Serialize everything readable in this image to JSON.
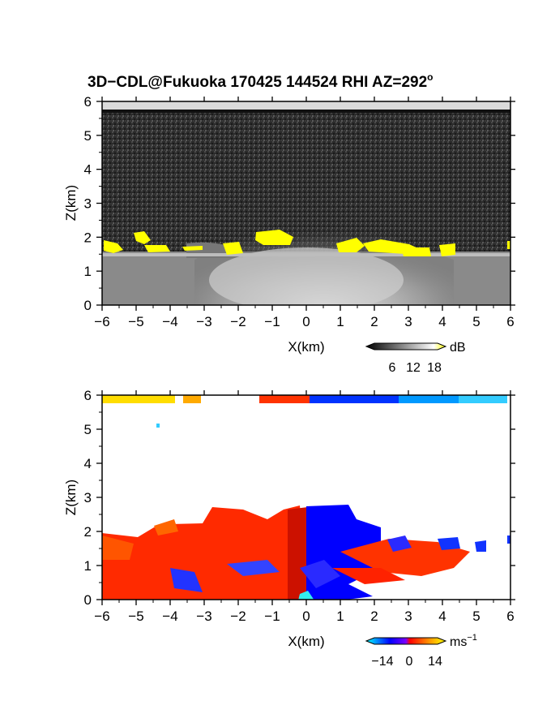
{
  "chart_data": [
    {
      "type": "heatmap",
      "title": "3D−CDL@Fukuoka 170425 144524 RHI AZ=292",
      "title_suffix": "o",
      "xlabel": "X(km)",
      "ylabel": "Z(km)",
      "xlim": [
        -6,
        6
      ],
      "ylim": [
        0,
        6
      ],
      "x_ticks": [
        -6,
        -5,
        -4,
        -3,
        -2,
        -1,
        0,
        1,
        2,
        3,
        4,
        5,
        6
      ],
      "y_ticks": [
        0,
        1,
        2,
        3,
        4,
        5,
        6
      ],
      "colorbar": {
        "unit": "dB",
        "ticks": [
          6,
          12,
          18
        ],
        "range": [
          0,
          20
        ],
        "colors": [
          "#000000",
          "#ffffff",
          "#ffff00"
        ]
      },
      "grid": false,
      "features": [
        {
          "name": "bright near-surface echo",
          "x": [
            -6,
            6
          ],
          "z": [
            0,
            1.6
          ],
          "db": 14
        },
        {
          "name": "high-SNR cloud-base band",
          "x": [
            -6,
            4.5
          ],
          "z": [
            1.5,
            2.2
          ],
          "db": 19
        },
        {
          "name": "noise region above cloud base",
          "x": [
            -6,
            6
          ],
          "z": [
            2,
            5.8
          ],
          "db": 3
        }
      ]
    },
    {
      "type": "heatmap",
      "xlabel": "X(km)",
      "ylabel": "Z(km)",
      "xlim": [
        -6,
        6
      ],
      "ylim": [
        0,
        6
      ],
      "x_ticks": [
        -6,
        -5,
        -4,
        -3,
        -2,
        -1,
        0,
        1,
        2,
        3,
        4,
        5,
        6
      ],
      "y_ticks": [
        0,
        1,
        2,
        3,
        4,
        5,
        6
      ],
      "colorbar": {
        "unit": "ms",
        "unit_exp": "−1",
        "ticks": [
          "−14",
          "0",
          "14"
        ],
        "range": [
          -20,
          20
        ],
        "colors": [
          "#00ffff",
          "#0000ff",
          "#ff0000",
          "#ffff00"
        ]
      },
      "grid": false,
      "features": [
        {
          "name": "receding flow west of radar",
          "x": [
            -6,
            0
          ],
          "z": [
            0,
            2.6
          ],
          "velocity": 8
        },
        {
          "name": "approaching flow east of radar",
          "x": [
            0,
            2.5
          ],
          "z": [
            0,
            2.7
          ],
          "velocity": -8
        },
        {
          "name": "receding flow east layer",
          "x": [
            1,
            4.8
          ],
          "z": [
            0.6,
            1.4
          ],
          "velocity": 8
        }
      ]
    }
  ]
}
